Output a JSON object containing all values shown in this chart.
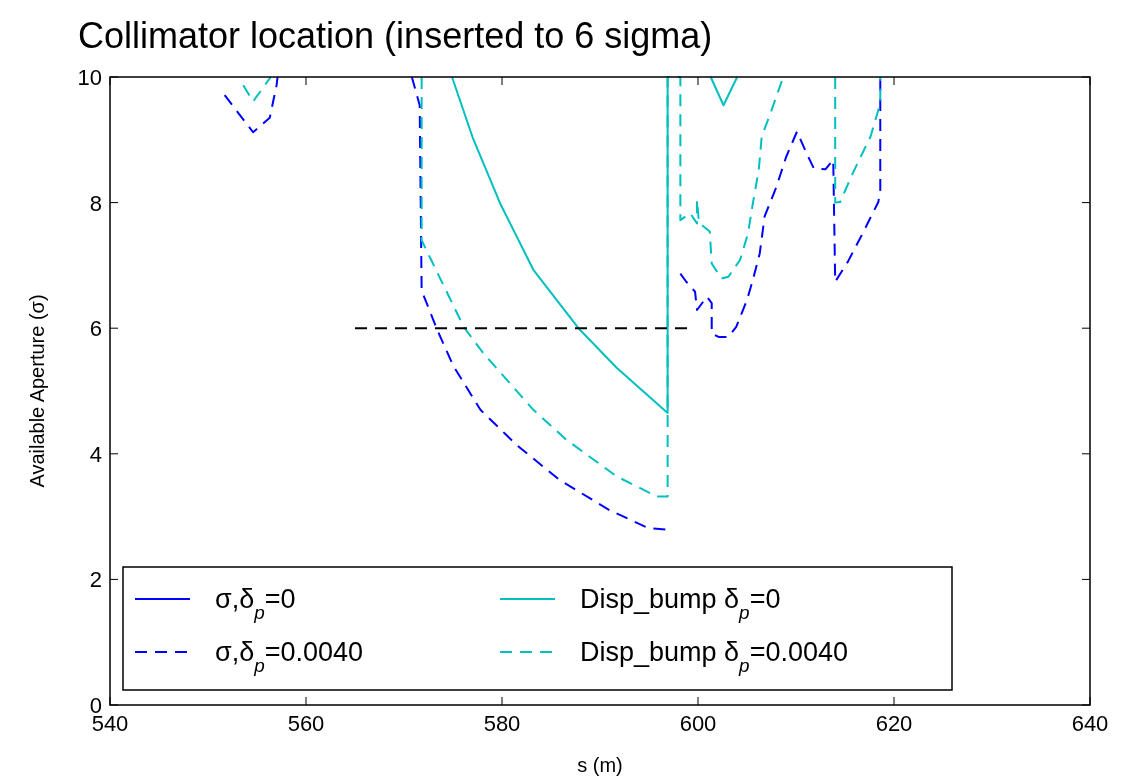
{
  "chart_data": {
    "type": "line",
    "title": "Collimator location (inserted to 6 sigma)",
    "xlabel": "s (m)",
    "ylabel": "Available Aperture (σ)",
    "xlim": [
      540,
      640
    ],
    "xticks": [
      540,
      560,
      580,
      600,
      620,
      640
    ],
    "ylim": [
      0,
      10
    ],
    "yticks": [
      0,
      2,
      4,
      6,
      8,
      10
    ],
    "grid": false,
    "legend": "bottom left",
    "marker": "none",
    "series": [
      {
        "name": "σ,δ$_{p}$=0",
        "color": "#0000ff",
        "line_style": "solid"
      },
      {
        "name": "σ,δ$_{p}$=0.0040",
        "color": "#0000ff",
        "line_style": "dashed",
        "x": [
          551.7,
          554.6,
          556.3,
          557.0,
          557.1,
          557.2,
          570.8,
          571.6,
          571.8,
          573.4,
          575.0,
          577.8,
          581.5,
          585.9,
          591.0,
          594.9,
          596.9,
          597.5,
          598.2,
          598.8,
          599.7,
          599.9,
          600.9,
          601.4,
          601.4,
          602.1,
          603.1,
          603.9,
          605.0,
          605.6,
          606.3,
          606.8,
          608.0,
          609.0,
          610.1,
          611.1,
          611.8,
          613.0,
          613.8,
          614.0,
          615.3,
          616.9,
          618.4,
          618.6,
          618.6
        ],
        "values": [
          9.71,
          9.12,
          9.35,
          9.87,
          10,
          null,
          10,
          9.55,
          6.6,
          5.97,
          5.41,
          4.7,
          4.14,
          3.58,
          3.1,
          2.82,
          2.79,
          null,
          6.87,
          6.74,
          6.58,
          6.29,
          6.5,
          6.4,
          5.92,
          5.86,
          5.86,
          6.02,
          6.45,
          6.77,
          7.19,
          7.78,
          8.25,
          8.73,
          9.13,
          8.78,
          8.55,
          8.53,
          8.68,
          6.74,
          7.06,
          7.54,
          8.01,
          8.2,
          10
        ]
      },
      {
        "name": "Disp_bump δ$_{p}$=0",
        "color": "#00bfbf",
        "line_style": "solid",
        "x": [
          574.9,
          577.0,
          579.8,
          583.2,
          587.8,
          591.7,
          596.9,
          596.9,
          599.0,
          601.3,
          602.6,
          604.0
        ],
        "values": [
          10,
          9.04,
          7.99,
          6.93,
          6.0,
          5.37,
          4.65,
          10,
          null,
          10,
          9.55,
          10
        ]
      },
      {
        "name": "Disp_bump δ$_{p}$=0.0040",
        "color": "#00bfbf",
        "line_style": "dashed",
        "x": [
          553.6,
          554.6,
          556.4,
          560.0,
          571.8,
          571.8,
          572.7,
          576.1,
          578.1,
          583.2,
          586.6,
          591.7,
          595.8,
          596.9,
          596.9,
          598.2,
          598.2,
          599.2,
          599.9,
          599.9,
          600.1,
          601.2,
          601.4,
          602.4,
          603.1,
          604.3,
          605.1,
          605.6,
          606.2,
          606.5,
          607.5,
          608.7,
          611.0,
          614.0,
          614.0,
          614.5,
          615.8,
          617.6,
          618.6,
          618.6
        ],
        "values": [
          9.87,
          9.61,
          10,
          null,
          10,
          7.4,
          7.11,
          6.02,
          5.6,
          4.7,
          4.22,
          3.64,
          3.32,
          3.32,
          10,
          10,
          7.72,
          7.83,
          7.67,
          8.04,
          7.68,
          7.54,
          7.03,
          6.79,
          6.82,
          7.09,
          7.51,
          7.99,
          8.52,
          9.05,
          9.47,
          10,
          null,
          10,
          8.0,
          8.01,
          8.47,
          9.05,
          9.58,
          10
        ]
      },
      {
        "color": "#000000",
        "line_style": "dashed",
        "x": [
          565,
          599.2
        ],
        "values": [
          6,
          6
        ]
      }
    ]
  }
}
